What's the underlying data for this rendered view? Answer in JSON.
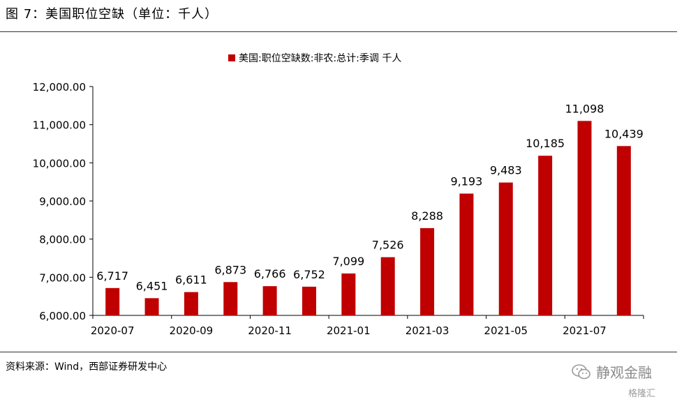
{
  "figure_title": "图 7：美国职位空缺（单位：千人）",
  "source": "资料来源：Wind，西部证券研发中心",
  "watermark": {
    "main": "静观金融",
    "sub": "格隆汇"
  },
  "colors": {
    "bar": "#c00000",
    "axis": "#000000"
  },
  "chart_data": {
    "type": "bar",
    "legend": "美国:职位空缺数:非农:总计:季调 千人",
    "legend_position": "top-center",
    "categories": [
      "2020-07",
      "2020-08",
      "2020-09",
      "2020-10",
      "2020-11",
      "2020-12",
      "2021-01",
      "2021-02",
      "2021-03",
      "2021-04",
      "2021-05",
      "2021-06",
      "2021-07",
      "2021-08"
    ],
    "x_tick_labels": [
      "2020-07",
      "",
      "2020-09",
      "",
      "2020-11",
      "",
      "2021-01",
      "",
      "2021-03",
      "",
      "2021-05",
      "",
      "2021-07",
      ""
    ],
    "values": [
      6717,
      6451,
      6611,
      6873,
      6766,
      6752,
      7099,
      7526,
      8288,
      9193,
      9483,
      10185,
      11098,
      10439
    ],
    "data_labels": [
      "6,717",
      "6,451",
      "6,611",
      "6,873",
      "6,766",
      "6,752",
      "7,099",
      "7,526",
      "8,288",
      "9,193",
      "9,483",
      "10,185",
      "11,098",
      "10,439"
    ],
    "y_ticks": [
      "6,000.00",
      "7,000.00",
      "8,000.00",
      "9,000.00",
      "10,000.00",
      "11,000.00",
      "12,000.00"
    ],
    "ylim": [
      6000,
      12000
    ],
    "grid": false
  }
}
